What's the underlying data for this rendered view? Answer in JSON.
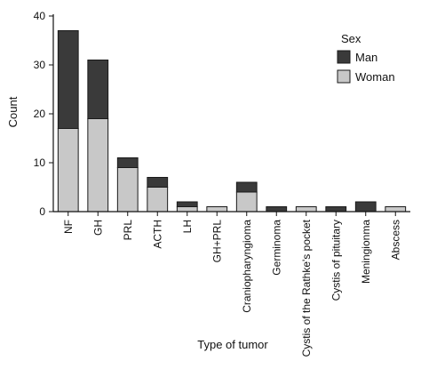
{
  "chart_data": {
    "type": "bar",
    "stacked": true,
    "categories": [
      "NF",
      "GH",
      "PRL",
      "ACTH",
      "LH",
      "GH+PRL",
      "Craniopharyngioma",
      "Germinoma",
      "Cystis of the Rathke's pocket",
      "Cystis of pituitary",
      "Meningionma",
      "Abscess"
    ],
    "series": [
      {
        "name": "Woman",
        "values": [
          17,
          19,
          9,
          5,
          1,
          1,
          4,
          0,
          1,
          0,
          0,
          1
        ]
      },
      {
        "name": "Man",
        "values": [
          20,
          12,
          2,
          2,
          1,
          0,
          2,
          1,
          0,
          1,
          2,
          0
        ]
      }
    ],
    "xlabel": "Type of tumor",
    "ylabel": "Count",
    "ylim": [
      0,
      40
    ],
    "yticks": [
      0,
      10,
      20,
      30,
      40
    ],
    "legend": {
      "title": "Sex",
      "entries": [
        "Man",
        "Woman"
      ],
      "placement": "top-right"
    },
    "grid": false,
    "colors": {
      "Man": "#3a3a3a",
      "Woman": "#c8c8c8",
      "outline": "#1a1a1a"
    }
  }
}
